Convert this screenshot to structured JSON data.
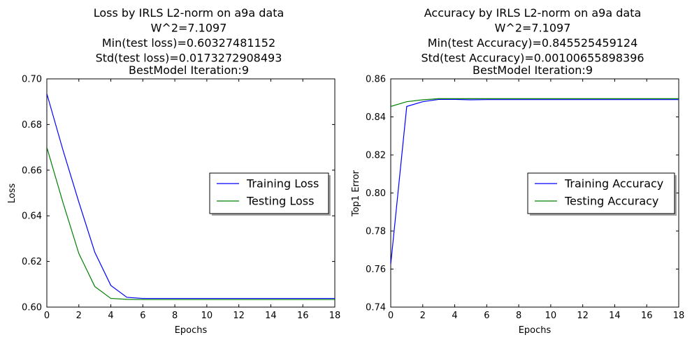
{
  "chart_data": [
    {
      "type": "line",
      "title_lines": [
        "Loss by IRLS L2-norm on a9a data",
        "W^2=7.1097",
        "Min(test loss)=0.60327481152",
        "Std(test loss)=0.0173272908493",
        "BestModel Iteration:9"
      ],
      "xlabel": "Epochs",
      "ylabel": "Loss",
      "xlim": [
        0,
        18
      ],
      "ylim": [
        0.6,
        0.7
      ],
      "xticks": [
        "0",
        "2",
        "4",
        "6",
        "8",
        "10",
        "12",
        "14",
        "16",
        "18"
      ],
      "yticks": [
        "0.60",
        "0.62",
        "0.64",
        "0.66",
        "0.68",
        "0.70"
      ],
      "legend_position": "center-right",
      "series": [
        {
          "name": "Training Loss",
          "color": "#0000ff",
          "x": [
            0,
            1,
            2,
            3,
            4,
            5,
            6,
            7,
            8,
            9,
            10,
            11,
            12,
            13,
            14,
            15,
            16,
            17,
            18
          ],
          "y": [
            0.6935,
            0.669,
            0.646,
            0.624,
            0.6095,
            0.6043,
            0.6038,
            0.6038,
            0.6038,
            0.6038,
            0.6038,
            0.6038,
            0.6038,
            0.6038,
            0.6038,
            0.6038,
            0.6038,
            0.6038,
            0.6038
          ]
        },
        {
          "name": "Testing Loss",
          "color": "#008000",
          "x": [
            0,
            1,
            2,
            3,
            4,
            5,
            6,
            7,
            8,
            9,
            10,
            11,
            12,
            13,
            14,
            15,
            16,
            17,
            18
          ],
          "y": [
            0.67,
            0.646,
            0.6235,
            0.609,
            0.6038,
            0.6034,
            0.6033,
            0.6033,
            0.6033,
            0.6033,
            0.6033,
            0.6033,
            0.6033,
            0.6033,
            0.6033,
            0.6033,
            0.6033,
            0.6033,
            0.6033
          ]
        }
      ]
    },
    {
      "type": "line",
      "title_lines": [
        "Accuracy by IRLS L2-norm on a9a data",
        "W^2=7.1097",
        "Min(test Accuracy)=0.845525459124",
        "Std(test Accuracy)=0.00100655898396",
        "BestModel Iteration:9"
      ],
      "xlabel": "Epochs",
      "ylabel": "Top1 Error",
      "xlim": [
        0,
        18
      ],
      "ylim": [
        0.74,
        0.86
      ],
      "xticks": [
        "0",
        "2",
        "4",
        "6",
        "8",
        "10",
        "12",
        "14",
        "16",
        "18"
      ],
      "yticks": [
        "0.74",
        "0.76",
        "0.78",
        "0.80",
        "0.82",
        "0.84",
        "0.86"
      ],
      "legend_position": "center-right",
      "series": [
        {
          "name": "Training Accuracy",
          "color": "#0000ff",
          "x": [
            0,
            1,
            2,
            3,
            4,
            5,
            6,
            7,
            8,
            9,
            10,
            11,
            12,
            13,
            14,
            15,
            16,
            17,
            18
          ],
          "y": [
            0.7625,
            0.8455,
            0.848,
            0.8492,
            0.8492,
            0.849,
            0.8491,
            0.8491,
            0.8491,
            0.8491,
            0.8491,
            0.8491,
            0.8491,
            0.8491,
            0.8491,
            0.8491,
            0.8491,
            0.8491,
            0.8491
          ]
        },
        {
          "name": "Testing Accuracy",
          "color": "#008000",
          "x": [
            0,
            1,
            2,
            3,
            4,
            5,
            6,
            7,
            8,
            9,
            10,
            11,
            12,
            13,
            14,
            15,
            16,
            17,
            18
          ],
          "y": [
            0.8455,
            0.848,
            0.849,
            0.8496,
            0.8496,
            0.8496,
            0.8496,
            0.8496,
            0.8496,
            0.8496,
            0.8496,
            0.8496,
            0.8496,
            0.8496,
            0.8496,
            0.8496,
            0.8496,
            0.8496,
            0.8496
          ]
        }
      ]
    }
  ]
}
